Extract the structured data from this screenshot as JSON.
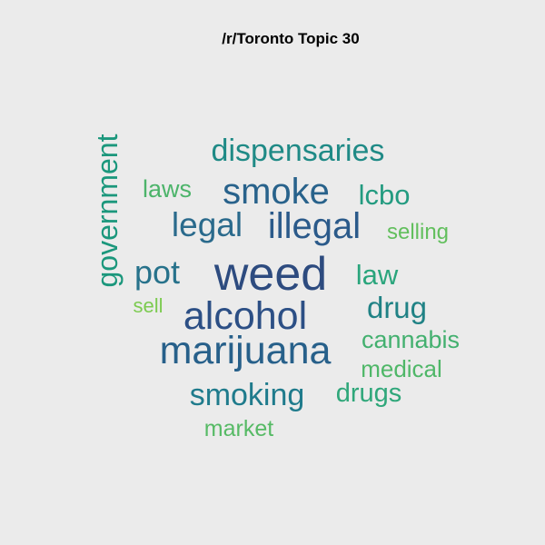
{
  "chart_data": {
    "type": "wordcloud",
    "title": "/r/Toronto Topic 30",
    "words": [
      {
        "text": "weed",
        "weight": 1.0,
        "color": "#2d4b7f"
      },
      {
        "text": "alcohol",
        "weight": 0.78,
        "color": "#2c4f85"
      },
      {
        "text": "marijuana",
        "weight": 0.78,
        "color": "#27608a"
      },
      {
        "text": "smoke",
        "weight": 0.72,
        "color": "#28628b"
      },
      {
        "text": "illegal",
        "weight": 0.72,
        "color": "#2b5a8a"
      },
      {
        "text": "legal",
        "weight": 0.68,
        "color": "#2a6a8c"
      },
      {
        "text": "pot",
        "weight": 0.66,
        "color": "#27728b"
      },
      {
        "text": "dispensaries",
        "weight": 0.62,
        "color": "#1f8a86"
      },
      {
        "text": "smoking",
        "weight": 0.62,
        "color": "#1f7b8c"
      },
      {
        "text": "drug",
        "weight": 0.6,
        "color": "#208285"
      },
      {
        "text": "government",
        "weight": 0.58,
        "color": "#1b977c"
      },
      {
        "text": "lcbo",
        "weight": 0.55,
        "color": "#239b80"
      },
      {
        "text": "law",
        "weight": 0.55,
        "color": "#2aa57c"
      },
      {
        "text": "drugs",
        "weight": 0.52,
        "color": "#2fa77a"
      },
      {
        "text": "laws",
        "weight": 0.47,
        "color": "#4cb46a"
      },
      {
        "text": "cannabis",
        "weight": 0.47,
        "color": "#43b06f"
      },
      {
        "text": "medical",
        "weight": 0.45,
        "color": "#4fb768"
      },
      {
        "text": "market",
        "weight": 0.44,
        "color": "#56ba65"
      },
      {
        "text": "selling",
        "weight": 0.42,
        "color": "#62bf5d"
      },
      {
        "text": "sell",
        "weight": 0.38,
        "color": "#7ccb50"
      }
    ]
  }
}
